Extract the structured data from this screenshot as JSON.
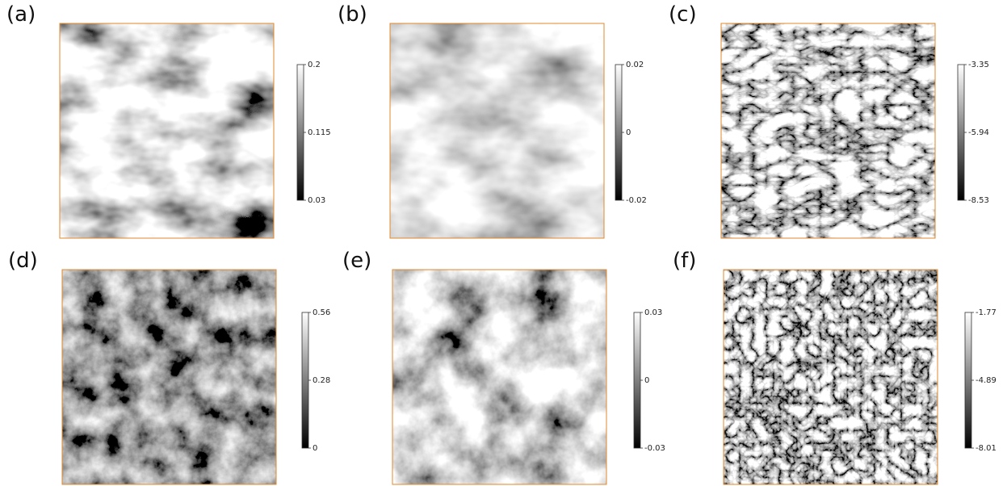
{
  "panels": [
    {
      "label": "(a)",
      "colorbar": {
        "lim": [
          0.03,
          0.2
        ],
        "ticks": [
          0.2,
          0.115,
          0.03
        ]
      }
    },
    {
      "label": "(b)",
      "colorbar": {
        "lim": [
          -0.02,
          0.02
        ],
        "ticks": [
          0.02,
          0,
          -0.02
        ]
      }
    },
    {
      "label": "(c)",
      "colorbar": {
        "lim": [
          -8.53,
          -3.35
        ],
        "ticks": [
          -3.35,
          -5.94,
          -8.53
        ]
      }
    },
    {
      "label": "(d)",
      "colorbar": {
        "lim": [
          0,
          0.56
        ],
        "ticks": [
          0.56,
          0.28,
          0
        ]
      }
    },
    {
      "label": "(e)",
      "colorbar": {
        "lim": [
          -0.03,
          0.03
        ],
        "ticks": [
          0.03,
          0,
          -0.03
        ]
      }
    },
    {
      "label": "(f)",
      "colorbar": {
        "lim": [
          -8.01,
          -1.77
        ],
        "ticks": [
          -1.77,
          -4.89,
          -8.01
        ]
      }
    }
  ]
}
